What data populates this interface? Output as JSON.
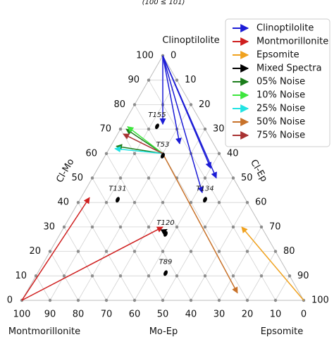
{
  "caption_fragment": "(100 ≤ 101)",
  "chart_data": {
    "type": "ternary",
    "vertices": {
      "top": "Clinoptilolite",
      "left": "Montmorillonite",
      "right": "Epsomite"
    },
    "axes": {
      "left_edge": "Cl-Mo",
      "right_edge": "Cl-Ep",
      "bottom_edge": "Mo-Ep"
    },
    "ticks": {
      "left": [
        "0",
        "10",
        "20",
        "30",
        "40",
        "50",
        "60",
        "70",
        "80",
        "90",
        "100"
      ],
      "right": [
        "0",
        "10",
        "20",
        "30",
        "40",
        "50",
        "60",
        "70",
        "80",
        "90",
        "100"
      ],
      "bottom": [
        "0",
        "10",
        "20",
        "30",
        "40",
        "50",
        "60",
        "70",
        "80",
        "90",
        "100"
      ]
    },
    "grid": true,
    "legend": {
      "position": "top-right",
      "entries": [
        {
          "label": "Clinoptilolite",
          "color": "#1c1cd6"
        },
        {
          "label": "Montmorillonite",
          "color": "#cf1f1f"
        },
        {
          "label": "Epsomite",
          "color": "#f0a21f"
        },
        {
          "label": "Mixed Spectra",
          "color": "#000000"
        },
        {
          "label": "05% Noise",
          "color": "#1b7d1b"
        },
        {
          "label": "10% Noise",
          "color": "#3ee63e"
        },
        {
          "label": "25% Noise",
          "color": "#22e3e3"
        },
        {
          "label": "50% Noise",
          "color": "#c8722a"
        },
        {
          "label": "75% Noise",
          "color": "#a83232"
        }
      ]
    },
    "samples": [
      {
        "name": "T155",
        "cl": 72,
        "mo": 16,
        "ep": 12
      },
      {
        "name": "T53",
        "cl": 60,
        "mo": 20,
        "ep": 20
      },
      {
        "name": "T131",
        "cl": 42,
        "mo": 45,
        "ep": 13
      },
      {
        "name": "T134",
        "cl": 42,
        "mo": 14,
        "ep": 44
      },
      {
        "name": "T120",
        "cl": 28,
        "mo": 35,
        "ep": 37
      },
      {
        "name": "T89",
        "cl": 12,
        "mo": 43,
        "ep": 45
      }
    ],
    "arrows": [
      {
        "series": "Clinoptilolite",
        "from": {
          "cl": 100,
          "mo": 0,
          "ep": 0
        },
        "to": {
          "cl": 72,
          "mo": 14,
          "ep": 14
        }
      },
      {
        "series": "Clinoptilolite",
        "from": {
          "cl": 100,
          "mo": 0,
          "ep": 0
        },
        "to": {
          "cl": 64,
          "mo": 12,
          "ep": 24
        }
      },
      {
        "series": "Clinoptilolite",
        "from": {
          "cl": 100,
          "mo": 0,
          "ep": 0
        },
        "to": {
          "cl": 54,
          "mo": 6,
          "ep": 40
        }
      },
      {
        "series": "Clinoptilolite",
        "from": {
          "cl": 100,
          "mo": 0,
          "ep": 0
        },
        "to": {
          "cl": 50,
          "mo": 6,
          "ep": 44
        }
      },
      {
        "series": "Clinoptilolite",
        "from": {
          "cl": 100,
          "mo": 0,
          "ep": 0
        },
        "to": {
          "cl": 44,
          "mo": 14,
          "ep": 42
        }
      },
      {
        "series": "Montmorillonite",
        "from": {
          "cl": 0,
          "mo": 100,
          "ep": 0
        },
        "to": {
          "cl": 42,
          "mo": 55,
          "ep": 3
        }
      },
      {
        "series": "Montmorillonite",
        "from": {
          "cl": 0,
          "mo": 100,
          "ep": 0
        },
        "to": {
          "cl": 30,
          "mo": 35,
          "ep": 35
        }
      },
      {
        "series": "Epsomite",
        "from": {
          "cl": 0,
          "mo": 0,
          "ep": 100
        },
        "to": {
          "cl": 30,
          "mo": 7,
          "ep": 63
        }
      },
      {
        "series": "Mixed Spectra",
        "from": {
          "cl": 28,
          "mo": 36,
          "ep": 36
        },
        "to": {
          "cl": 29,
          "mo": 34,
          "ep": 37
        }
      },
      {
        "series": "05% Noise",
        "from": {
          "cl": 60,
          "mo": 20,
          "ep": 20
        },
        "to": {
          "cl": 70,
          "mo": 28,
          "ep": 2
        }
      },
      {
        "series": "05% Noise",
        "from": {
          "cl": 60,
          "mo": 20,
          "ep": 20
        },
        "to": {
          "cl": 63,
          "mo": 35,
          "ep": 2
        }
      },
      {
        "series": "10% Noise",
        "from": {
          "cl": 60,
          "mo": 20,
          "ep": 20
        },
        "to": {
          "cl": 71,
          "mo": 27,
          "ep": 2
        }
      },
      {
        "series": "25% Noise",
        "from": {
          "cl": 60,
          "mo": 20,
          "ep": 20
        },
        "to": {
          "cl": 62,
          "mo": 36,
          "ep": 2
        }
      },
      {
        "series": "50% Noise",
        "from": {
          "cl": 60,
          "mo": 20,
          "ep": 20
        },
        "to": {
          "cl": 3,
          "mo": 22,
          "ep": 75
        }
      },
      {
        "series": "75% Noise",
        "from": {
          "cl": 60,
          "mo": 20,
          "ep": 20
        },
        "to": {
          "cl": 68,
          "mo": 30,
          "ep": 2
        }
      }
    ]
  }
}
